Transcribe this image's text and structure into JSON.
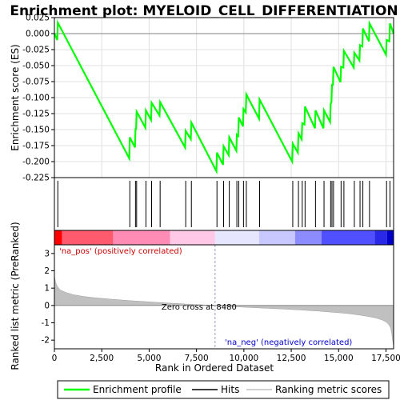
{
  "chart_data": [
    {
      "type": "line",
      "title": "Enrichment plot: MYELOID_CELL_DIFFERENTIATION",
      "ylabel": "Enrichment score (ES)",
      "xlabel": "",
      "xlim": [
        0,
        17902
      ],
      "ylim": [
        -0.225,
        0.025
      ],
      "y_ticks": [
        "0.025",
        "0.000",
        "-0.025",
        "-0.050",
        "-0.075",
        "-0.100",
        "-0.125",
        "-0.150",
        "-0.175",
        "-0.200",
        "-0.225"
      ],
      "y_tick_values": [
        0.025,
        0.0,
        -0.025,
        -0.05,
        -0.075,
        -0.1,
        -0.125,
        -0.15,
        -0.175,
        -0.2,
        -0.225
      ],
      "grid": true,
      "series": [
        {
          "name": "Enrichment profile",
          "color": "#00ff00",
          "x": [
            0,
            150,
            180,
            3950,
            3980,
            4250,
            4280,
            4310,
            4340,
            4400,
            4800,
            4830,
            5100,
            5130,
            5550,
            5580,
            6900,
            6930,
            7200,
            7230,
            8550,
            8580,
            8900,
            8930,
            9200,
            9230,
            9600,
            9630,
            9700,
            9730,
            9950,
            9980,
            10100,
            10130,
            10800,
            10830,
            12550,
            12580,
            12850,
            12880,
            13050,
            13080,
            13200,
            13230,
            13750,
            13780,
            14200,
            14230,
            14550,
            14580,
            14620,
            14650,
            14700,
            14730,
            15100,
            15130,
            15250,
            15280,
            15800,
            15830,
            16100,
            16130,
            16250,
            16280,
            16600,
            16630,
            17500,
            17530,
            17680,
            17710,
            17902
          ],
          "y": [
            0.0,
            -0.01,
            0.017,
            -0.195,
            -0.162,
            -0.178,
            -0.148,
            -0.15,
            -0.122,
            -0.125,
            -0.147,
            -0.12,
            -0.135,
            -0.108,
            -0.128,
            -0.107,
            -0.178,
            -0.152,
            -0.165,
            -0.139,
            -0.215,
            -0.186,
            -0.205,
            -0.176,
            -0.19,
            -0.162,
            -0.183,
            -0.158,
            -0.16,
            -0.131,
            -0.145,
            -0.118,
            -0.123,
            -0.095,
            -0.133,
            -0.103,
            -0.2,
            -0.172,
            -0.186,
            -0.156,
            -0.165,
            -0.14,
            -0.142,
            -0.114,
            -0.148,
            -0.12,
            -0.148,
            -0.12,
            -0.138,
            -0.11,
            -0.107,
            -0.08,
            -0.08,
            -0.052,
            -0.076,
            -0.052,
            -0.053,
            -0.027,
            -0.053,
            -0.03,
            -0.042,
            -0.018,
            -0.02,
            0.008,
            -0.012,
            0.016,
            -0.033,
            -0.01,
            -0.012,
            0.016,
            0.0
          ]
        }
      ]
    },
    {
      "type": "scatter",
      "title": "",
      "xlabel": "",
      "ylabel": "",
      "series": [
        {
          "name": "Hits",
          "color": "#000000",
          "x": [
            180,
            3980,
            4280,
            4340,
            4830,
            5130,
            5580,
            6930,
            7230,
            8580,
            8930,
            9230,
            9630,
            9730,
            9980,
            10130,
            10830,
            12580,
            12880,
            13080,
            13230,
            13780,
            14230,
            14580,
            14650,
            14730,
            15130,
            15280,
            15830,
            16130,
            16280,
            16630,
            17530,
            17710
          ]
        }
      ]
    },
    {
      "type": "heatmap",
      "title": "",
      "xlabel": "",
      "ylabel": "",
      "bands": [
        {
          "from": 0,
          "to": 400,
          "color": "#ff0000"
        },
        {
          "from": 400,
          "to": 3100,
          "color": "#ff5a6e"
        },
        {
          "from": 3100,
          "to": 6100,
          "color": "#ff8cb4"
        },
        {
          "from": 6100,
          "to": 8480,
          "color": "#ffc8e6"
        },
        {
          "from": 8480,
          "to": 10800,
          "color": "#e6e6ff"
        },
        {
          "from": 10800,
          "to": 12700,
          "color": "#c8c8ff"
        },
        {
          "from": 12700,
          "to": 14100,
          "color": "#8c8cff"
        },
        {
          "from": 14100,
          "to": 16900,
          "color": "#5050ff"
        },
        {
          "from": 16900,
          "to": 17550,
          "color": "#2828e6"
        },
        {
          "from": 17550,
          "to": 17902,
          "color": "#0000c8"
        }
      ]
    },
    {
      "type": "area",
      "title": "",
      "xlabel": "Rank in Ordered Dataset",
      "ylabel": "Ranked list metric (PreRanked)",
      "xlim": [
        0,
        17902
      ],
      "ylim": [
        -2.5,
        3.5
      ],
      "x_ticks": [
        "0",
        "2,500",
        "5,000",
        "7,500",
        "10,000",
        "12,500",
        "15,000",
        "17,500"
      ],
      "x_tick_values": [
        0,
        2500,
        5000,
        7500,
        10000,
        12500,
        15000,
        17500
      ],
      "y_ticks": [
        "3",
        "2",
        "1",
        "0",
        "-1",
        "-2"
      ],
      "y_tick_values": [
        3,
        2,
        1,
        0,
        -1,
        -2
      ],
      "series": [
        {
          "name": "Ranking metric scores",
          "color": "#c0c0c0",
          "x": [
            0,
            20,
            60,
            150,
            300,
            600,
            1000,
            1500,
            2000,
            3000,
            4000,
            5000,
            6000,
            7000,
            8000,
            8480,
            9000,
            10000,
            11000,
            12000,
            13000,
            14000,
            15000,
            15500,
            16000,
            16500,
            17000,
            17300,
            17500,
            17650,
            17750,
            17800,
            17850,
            17902
          ],
          "values": [
            1.8,
            1.6,
            1.35,
            1.1,
            0.9,
            0.75,
            0.62,
            0.53,
            0.46,
            0.36,
            0.28,
            0.21,
            0.14,
            0.08,
            0.03,
            0.0,
            -0.04,
            -0.1,
            -0.15,
            -0.2,
            -0.26,
            -0.33,
            -0.42,
            -0.47,
            -0.54,
            -0.62,
            -0.73,
            -0.84,
            -0.95,
            -1.1,
            -1.3,
            -1.6,
            -2.0,
            -2.4
          ]
        }
      ],
      "annotations": {
        "zero_cross": "Zero cross at 8480",
        "pos_label": "'na_pos' (positively correlated)",
        "neg_label": "'na_neg' (negatively correlated)"
      }
    }
  ],
  "legend": {
    "items": [
      {
        "label": "Enrichment profile",
        "color": "#00ff00"
      },
      {
        "label": "Hits",
        "color": "#000000"
      },
      {
        "label": "Ranking metric scores",
        "color": "#c0c0c0"
      }
    ]
  },
  "colors": {
    "pos_text": "#cc0000",
    "neg_text": "#0000cc",
    "grid": "#e0e0e0",
    "zero_line": "#a0a0a0"
  }
}
